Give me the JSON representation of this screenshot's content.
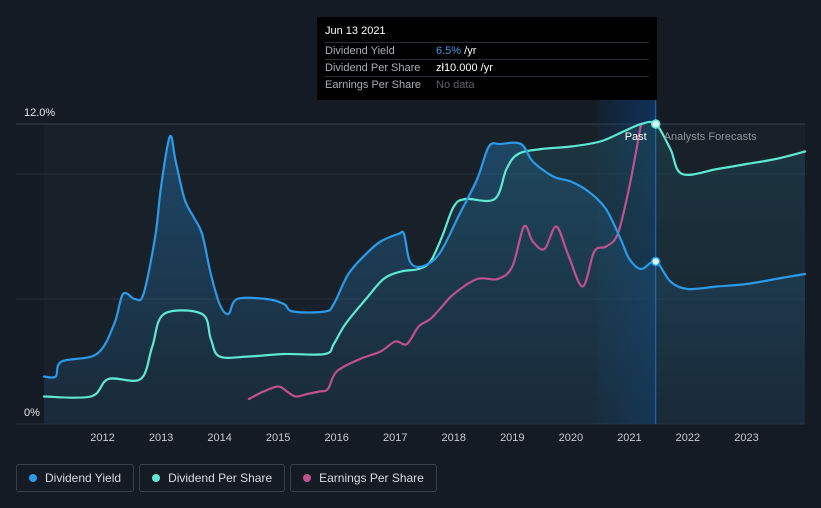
{
  "chart_data": {
    "type": "line",
    "x_range": [
      2011.0,
      2024.0
    ],
    "y_range": [
      0,
      12.0
    ],
    "y_labels": [
      "12.0%",
      "0%"
    ],
    "x_ticks": [
      "2012",
      "2013",
      "2014",
      "2015",
      "2016",
      "2017",
      "2018",
      "2019",
      "2020",
      "2021",
      "2022",
      "2023"
    ],
    "zones": {
      "past_label": "Past",
      "forecast_label": "Analysts Forecasts",
      "divider_x": 2021.45
    },
    "colors": {
      "yield": "#2b9ae9",
      "dps": "#5fe8d3",
      "eps": "#c0508f",
      "bg": "#151b24"
    },
    "series": [
      {
        "name": "Dividend Yield",
        "values": [
          [
            2011.0,
            1.9
          ],
          [
            2011.2,
            1.9
          ],
          [
            2011.3,
            2.5
          ],
          [
            2011.9,
            2.8
          ],
          [
            2012.2,
            4.0
          ],
          [
            2012.35,
            5.2
          ],
          [
            2012.55,
            5.0
          ],
          [
            2012.7,
            5.2
          ],
          [
            2012.9,
            7.5
          ],
          [
            2013.0,
            9.5
          ],
          [
            2013.15,
            11.5
          ],
          [
            2013.25,
            10.5
          ],
          [
            2013.4,
            9.0
          ],
          [
            2013.55,
            8.3
          ],
          [
            2013.7,
            7.6
          ],
          [
            2013.85,
            6.0
          ],
          [
            2014.0,
            4.8
          ],
          [
            2014.15,
            4.4
          ],
          [
            2014.3,
            5.0
          ],
          [
            2014.8,
            5.0
          ],
          [
            2015.1,
            4.8
          ],
          [
            2015.25,
            4.5
          ],
          [
            2015.8,
            4.5
          ],
          [
            2015.95,
            4.8
          ],
          [
            2016.2,
            6.0
          ],
          [
            2016.5,
            6.8
          ],
          [
            2016.75,
            7.3
          ],
          [
            2017.05,
            7.6
          ],
          [
            2017.15,
            7.6
          ],
          [
            2017.25,
            6.5
          ],
          [
            2017.45,
            6.3
          ],
          [
            2017.75,
            6.8
          ],
          [
            2018.1,
            8.4
          ],
          [
            2018.4,
            9.8
          ],
          [
            2018.6,
            11.1
          ],
          [
            2018.8,
            11.2
          ],
          [
            2019.15,
            11.2
          ],
          [
            2019.35,
            10.5
          ],
          [
            2019.7,
            9.9
          ],
          [
            2020.0,
            9.7
          ],
          [
            2020.3,
            9.3
          ],
          [
            2020.6,
            8.6
          ],
          [
            2020.85,
            7.4
          ],
          [
            2021.0,
            6.6
          ],
          [
            2021.2,
            6.2
          ],
          [
            2021.45,
            6.5
          ],
          [
            2021.7,
            5.7
          ],
          [
            2022.0,
            5.4
          ],
          [
            2022.5,
            5.5
          ],
          [
            2023.0,
            5.6
          ],
          [
            2023.5,
            5.8
          ],
          [
            2024.0,
            6.0
          ]
        ]
      },
      {
        "name": "Dividend Per Share",
        "values": [
          [
            2011.0,
            1.1
          ],
          [
            2011.8,
            1.1
          ],
          [
            2012.1,
            1.8
          ],
          [
            2012.65,
            1.8
          ],
          [
            2012.85,
            3.1
          ],
          [
            2013.05,
            4.4
          ],
          [
            2013.7,
            4.4
          ],
          [
            2013.85,
            3.4
          ],
          [
            2014.0,
            2.7
          ],
          [
            2014.5,
            2.7
          ],
          [
            2015.1,
            2.8
          ],
          [
            2015.8,
            2.8
          ],
          [
            2015.95,
            3.2
          ],
          [
            2016.15,
            4.0
          ],
          [
            2016.5,
            5.0
          ],
          [
            2016.8,
            5.8
          ],
          [
            2017.1,
            6.1
          ],
          [
            2017.4,
            6.2
          ],
          [
            2017.6,
            6.5
          ],
          [
            2017.8,
            7.5
          ],
          [
            2018.0,
            8.7
          ],
          [
            2018.2,
            9.0
          ],
          [
            2018.7,
            9.0
          ],
          [
            2018.9,
            10.2
          ],
          [
            2019.1,
            10.8
          ],
          [
            2019.5,
            11.0
          ],
          [
            2020.0,
            11.1
          ],
          [
            2020.5,
            11.3
          ],
          [
            2020.9,
            11.7
          ],
          [
            2021.2,
            12.0
          ],
          [
            2021.45,
            12.0
          ],
          [
            2021.7,
            11.0
          ],
          [
            2021.9,
            10.0
          ],
          [
            2022.5,
            10.2
          ],
          [
            2023.0,
            10.4
          ],
          [
            2023.5,
            10.6
          ],
          [
            2024.0,
            10.9
          ]
        ]
      },
      {
        "name": "Earnings Per Share",
        "values": [
          [
            2014.5,
            1.0
          ],
          [
            2014.75,
            1.3
          ],
          [
            2015.0,
            1.5
          ],
          [
            2015.15,
            1.3
          ],
          [
            2015.3,
            1.1
          ],
          [
            2015.5,
            1.2
          ],
          [
            2015.7,
            1.3
          ],
          [
            2015.85,
            1.4
          ],
          [
            2016.0,
            2.1
          ],
          [
            2016.4,
            2.6
          ],
          [
            2016.75,
            2.9
          ],
          [
            2017.0,
            3.3
          ],
          [
            2017.2,
            3.2
          ],
          [
            2017.4,
            3.9
          ],
          [
            2017.6,
            4.2
          ],
          [
            2017.8,
            4.7
          ],
          [
            2018.0,
            5.2
          ],
          [
            2018.4,
            5.8
          ],
          [
            2018.75,
            5.8
          ],
          [
            2019.0,
            6.3
          ],
          [
            2019.2,
            7.9
          ],
          [
            2019.35,
            7.3
          ],
          [
            2019.55,
            7.0
          ],
          [
            2019.75,
            7.9
          ],
          [
            2019.95,
            6.8
          ],
          [
            2020.2,
            5.5
          ],
          [
            2020.4,
            6.9
          ],
          [
            2020.6,
            7.1
          ],
          [
            2020.8,
            7.6
          ],
          [
            2021.0,
            9.5
          ],
          [
            2021.2,
            12.0
          ]
        ]
      }
    ]
  },
  "tooltip": {
    "date": "Jun 13 2021",
    "rows": [
      {
        "name": "Dividend Yield",
        "value": "6.5%",
        "unit": " /yr"
      },
      {
        "name": "Dividend Per Share",
        "value": "zł10.000",
        "unit": " /yr"
      },
      {
        "name": "Earnings Per Share",
        "value": "No data",
        "unit": ""
      }
    ]
  },
  "legend": [
    {
      "label": "Dividend Yield"
    },
    {
      "label": "Dividend Per Share"
    },
    {
      "label": "Earnings Per Share"
    }
  ]
}
